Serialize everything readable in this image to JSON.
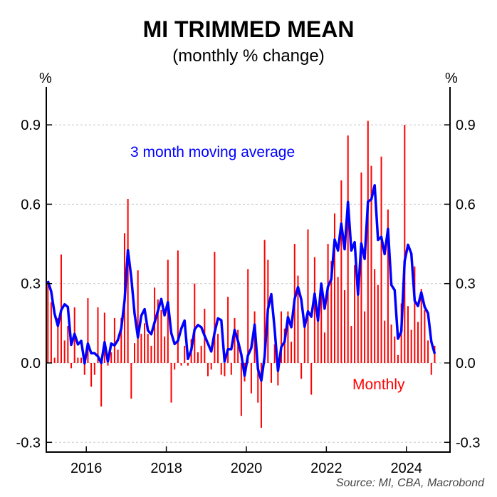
{
  "chart_data": {
    "type": "bar+line",
    "title": "MI TRIMMED MEAN",
    "subtitle": "(monthly % change)",
    "ylabel_left": "%",
    "ylabel_right": "%",
    "source": "Source: MI, CBA, Macrobond",
    "ylim": [
      -0.34,
      1.04
    ],
    "yticks": [
      -0.3,
      0.0,
      0.3,
      0.6,
      0.9
    ],
    "ytick_labels": [
      "-0.3",
      "0.0",
      "0.3",
      "0.6",
      "0.9"
    ],
    "xlim": [
      "2015-01",
      "2025-01"
    ],
    "xticks": [
      "2016",
      "2018",
      "2020",
      "2022",
      "2024"
    ],
    "grid": "horizontal dashed",
    "x_start": "2015-01",
    "x_end": "2024-09",
    "frequency": "monthly",
    "series": [
      {
        "name": "Monthly",
        "type": "bar",
        "color": "#ff0000",
        "values": [
          0.31,
          0.23,
          0.02,
          0.17,
          0.41,
          0.085,
          0.14,
          -0.02,
          0.21,
          0.02,
          0.02,
          -0.045,
          0.245,
          -0.09,
          -0.045,
          0.21,
          -0.165,
          0.19,
          -0.01,
          0.04,
          0.17,
          0.05,
          0.17,
          0.49,
          0.62,
          -0.135,
          0.075,
          0.35,
          0.11,
          0.15,
          0.11,
          0.065,
          0.285,
          0.24,
          0.2,
          0.1,
          0.39,
          -0.15,
          -0.025,
          0.425,
          -0.01,
          0.065,
          -0.01,
          0.09,
          0.3,
          0.04,
          0.065,
          0.205,
          -0.05,
          -0.025,
          0.42,
          0.11,
          -0.045,
          -0.05,
          0.25,
          -0.045,
          0.17,
          0.125,
          -0.2,
          -0.07,
          0.355,
          -0.115,
          0.195,
          -0.15,
          -0.245,
          0.465,
          0.39,
          -0.075,
          0.07,
          -0.085,
          0.195,
          0.13,
          0.195,
          0.08,
          0.45,
          0.33,
          -0.06,
          0.14,
          0.505,
          -0.12,
          0.4,
          0.2,
          0.3,
          0.115,
          0.45,
          0.385,
          0.565,
          0.325,
          0.69,
          0.275,
          0.86,
          0.14,
          0.37,
          0.265,
          0.72,
          0.195,
          0.915,
          0.745,
          0.355,
          0.295,
          0.78,
          0.16,
          0.58,
          0.145,
          0.1,
          0.03,
          0.225,
          0.9,
          0.215,
          0.125,
          0.365,
          0.155,
          0.28,
          0.2,
          0.085,
          -0.045,
          0.065
        ]
      },
      {
        "name": "3 month moving average",
        "type": "line",
        "color": "#0000ff",
        "derived_from": "Monthly"
      }
    ]
  },
  "annotations": {
    "line_label": "3 month moving average",
    "bar_label": "Monthly"
  }
}
